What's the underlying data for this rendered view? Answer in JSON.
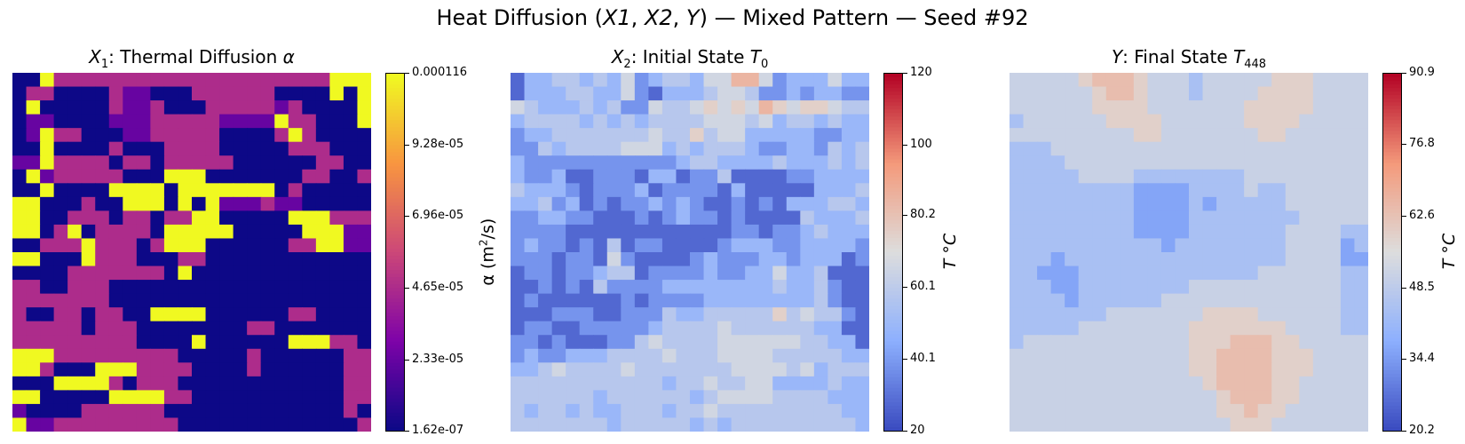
{
  "figure": {
    "title": "Heat Diffusion (X1, X2, Y) — Mixed Pattern  — Seed #92",
    "title_parts": {
      "pre": "Heat Diffusion (",
      "x1": "X1",
      "x2": "X2",
      "y": "Y",
      "post": ") — Mixed Pattern  — Seed #92"
    }
  },
  "chart_data": [
    {
      "type": "heatmap",
      "title": "X1: Thermal Diffusion α",
      "title_parts": {
        "sym": "X",
        "sub": "1",
        "text": ": Thermal Diffusion ",
        "greek": "α"
      },
      "colormap": "plasma",
      "colorbar": {
        "label": "α (m²/s)",
        "label_parts": {
          "pre": "α (m",
          "sup": "2",
          "post": "/s)"
        },
        "range": [
          1.62e-07,
          0.000116
        ],
        "ticks": [
          "0.000116",
          "9.28e-05",
          "6.96e-05",
          "4.65e-05",
          "2.33e-05",
          "1.62e-07"
        ],
        "tick_values": [
          0.000116,
          9.28e-05,
          6.96e-05,
          4.65e-05,
          2.33e-05,
          1.62e-07
        ]
      },
      "grid": [
        "11433333333333333333333444",
        "13311113221113333331111414",
        "14111113223111333332311114",
        "12211112223333322224331114",
        "12433111223333311113431111",
        "11411113111333311111333111",
        "22433331331333331111113311",
        "14233333111444111111133113",
        "11411114444144444441311111",
        "44111311444141422232211111",
        "44113331331334411111444333",
        "44134133331444441111144422",
        "11333433313444111111334422",
        "44111433311133111111111111",
        "11113333333141111111111111",
        "33113331111111111111111111",
        "33333331111111111111111111",
        "31133133114444111111331111",
        "33333133311111111331111111",
        "33333333311114111111444331",
        "44433333333311111311111133",
        "44311144433331111311111133",
        "11144443133311111111111133",
        "44111114444331111111111133",
        "21111333333111111111111131",
        "42233333333311111111111113"
      ],
      "grid_scale": {
        "1": 1.62e-07,
        "2": 2.33e-05,
        "3": 4.65e-05,
        "4": 0.000116
      }
    },
    {
      "type": "heatmap",
      "title": "X2: Initial State T0",
      "title_parts": {
        "sym": "X",
        "sub": "2",
        "text": ": Initial State ",
        "var": "T",
        "varsub": "0"
      },
      "colormap": "coolwarm",
      "colorbar": {
        "label": "T °C",
        "range": [
          20,
          120
        ],
        "ticks": [
          "120",
          "100",
          "80.2",
          "60.1",
          "40.1",
          "20"
        ],
        "tick_values": [
          120,
          100,
          80.2,
          60.1,
          40.1,
          20
        ]
      },
      "grid": [
        "13344343523443557752333533",
        "13334433521333455422323322",
        "54333434225445656576566544",
        "34444343434444555453443433",
        "23344444445446455333332233",
        "22434444555343444322332434",
        "32222222222234433334333434",
        "32231122213312241111223333",
        "43332122231222213111113334",
        "33423121223232112121333443",
        "22332211121232212111143334",
        "22221111111111112212234333",
        "23221214122111123332233332",
        "22212215211112322233233312",
        "12212234412222322335334111",
        "11212142222333333334334211",
        "12111111212222333333334211",
        "11122211222433444446454421",
        "12211222223444454444443311",
        "22121112245444455555544331",
        "23223334444544455554444433",
        "33454444544444445555453444",
        "44444444444344544553333433",
        "44444434444443455554444333",
        "43443433444344544444444433",
        "44444443444443434444444443"
      ],
      "grid_scale": {
        "1": 27,
        "2": 38,
        "3": 49,
        "4": 58,
        "5": 66,
        "6": 75,
        "7": 85
      }
    },
    {
      "type": "heatmap",
      "title": "Y: Final State T448",
      "title_parts": {
        "sym": "Y",
        "text": ": Final State ",
        "var": "T",
        "varsub": "448"
      },
      "colormap": "coolwarm",
      "colorbar": {
        "label": "T °C",
        "range": [
          20.2,
          90.9
        ],
        "ticks": [
          "90.9",
          "76.8",
          "62.6",
          "48.5",
          "34.4",
          "20.2"
        ],
        "tick_values": [
          90.9,
          76.8,
          62.6,
          48.5,
          34.4,
          20.2
        ]
      },
      "grid": [
        "44444566654443444445554444",
        "44444456654443444455554444",
        "44444455554444444555554444",
        "34444445555444444555544444",
        "44444444455444444455444444",
        "33344444444444444444444444",
        "33334444444444444444444444",
        "33333444433333333444444444",
        "33333333322223333433444444",
        "33333333322223233333444444",
        "33333333322223333333344444",
        "33333333322223333333444433",
        "33333333333233333333444423",
        "33323333333333333333444422",
        "33222333333333333344444433",
        "33322333333334444444444433",
        "33332333333444444444444433",
        "33333334444444555544444433",
        "33333444444445555555444433",
        "34444444444445556665544444",
        "44444444444445566665554444",
        "44444444444445566665554444",
        "44444444444444566665544444",
        "44444444444444456665544444",
        "44444444444444455655444444",
        "44444444444444445554444444"
      ],
      "grid_scale": {
        "1": 25,
        "2": 36,
        "3": 44,
        "4": 51,
        "5": 59,
        "6": 64,
        "7": 72
      }
    }
  ]
}
